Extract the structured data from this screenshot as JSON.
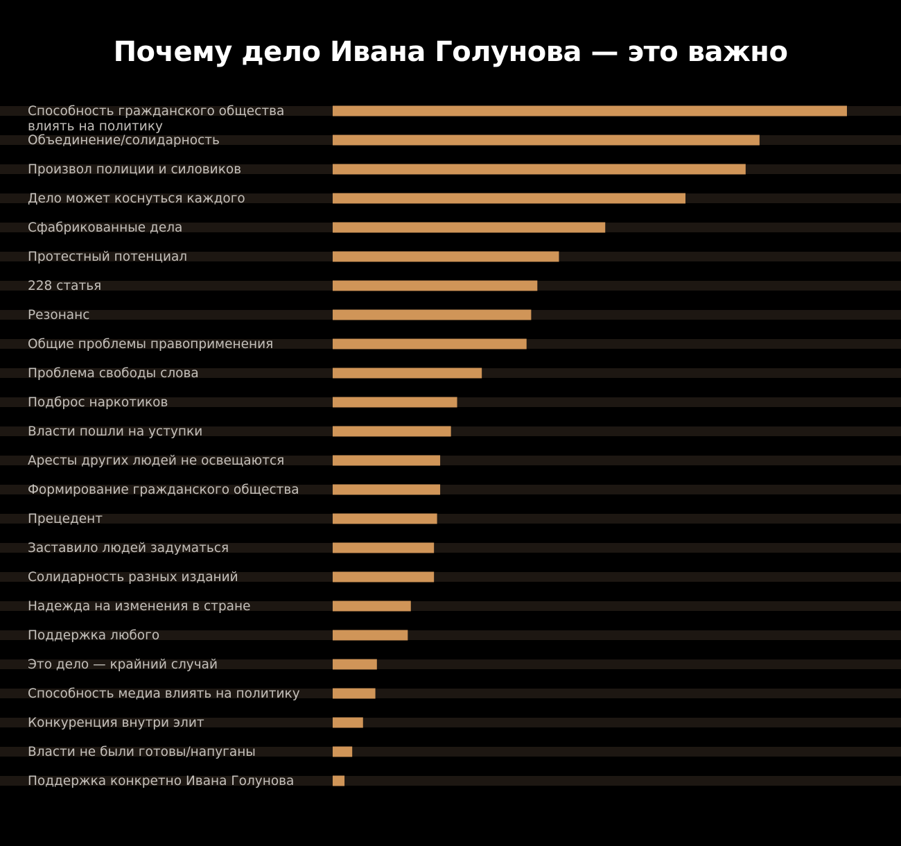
{
  "title": "Почему дело Ивана Голунова — это важно",
  "chart_data": {
    "type": "bar",
    "orientation": "horizontal",
    "title": "Почему дело Ивана Голунова — это важно",
    "xlabel": "",
    "ylabel": "",
    "grid": false,
    "legend": "none",
    "xlim": [
      0,
      100
    ],
    "categories": [
      [
        "Способность гражданского общества",
        "влиять на политику"
      ],
      "Объединение/солидарность",
      "Произвол полиции и силовиков",
      "Дело может коснуться каждого",
      "Сфабрикованные дела",
      "Протестный потенциал",
      "228 статья",
      "Резонанс",
      "Общие проблемы правоприменения",
      "Проблема свободы слова",
      "Подброс наркотиков",
      "Власти пошли на уступки",
      "Аресты других людей не освещаются",
      "Формирование гражданского общества",
      "Прецедент",
      "Заставило людей задуматься",
      "Солидарность разных изданий",
      "Надежда на изменения в стране",
      "Поддержка любого",
      "Это дело — крайний случай",
      "Способность медиа влиять на политику",
      "Конкуренция внутри элит",
      "Власти не были готовы/напуганы",
      "Поддержка конкретно Ивана Голунова"
    ],
    "values": [
      100,
      83,
      80.3,
      68.6,
      53,
      44,
      39.8,
      38.6,
      37.7,
      29,
      24.2,
      23,
      20.9,
      20.9,
      20.3,
      19.7,
      19.7,
      15.2,
      14.6,
      8.6,
      8.3,
      5.9,
      3.8,
      2.3
    ],
    "colors": {
      "bar": "#d09558",
      "track": "#1d1712",
      "background": "#000000",
      "label": "#c4c0bb",
      "title": "#ffffff"
    }
  }
}
